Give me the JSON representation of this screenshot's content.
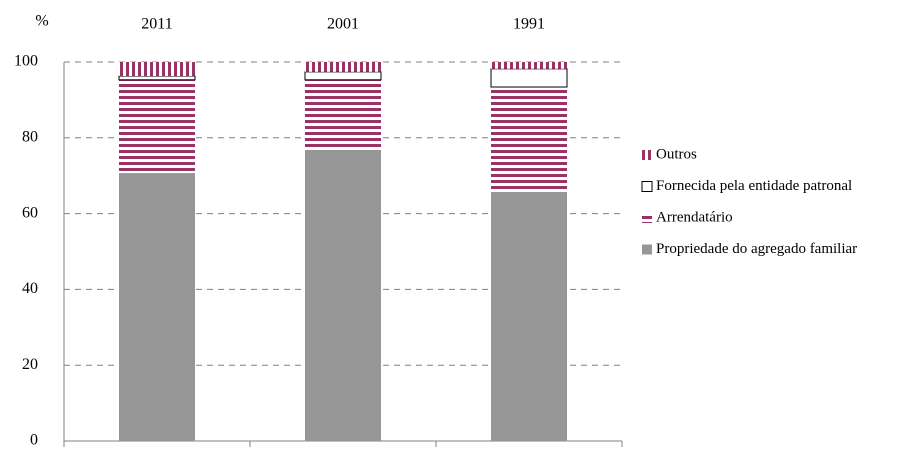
{
  "chart_data": {
    "type": "stacked_bar",
    "y_label": "%",
    "categories": [
      "2011",
      "2001",
      "1991"
    ],
    "series": [
      {
        "name": "Propriedade do agregado familiar",
        "color": "#969696",
        "pattern": "solid",
        "values": [
          70.7,
          76.8,
          65.7
        ]
      },
      {
        "name": "Arrendatário",
        "color": "#993366",
        "pattern": "horizontal-stripes",
        "values": [
          24.6,
          18.5,
          27.7
        ]
      },
      {
        "name": "Fornecida pela entidade patronal",
        "color": "#ffffff",
        "pattern": "solid",
        "values": [
          1.0,
          2.1,
          4.8
        ]
      },
      {
        "name": "Outros",
        "color": "#993366",
        "pattern": "vertical-stripes",
        "values": [
          3.7,
          2.6,
          1.8
        ]
      }
    ],
    "ylim": [
      0,
      100
    ],
    "yticks": [
      0,
      20,
      40,
      60,
      80,
      100
    ],
    "grid": true,
    "legend": "right"
  }
}
